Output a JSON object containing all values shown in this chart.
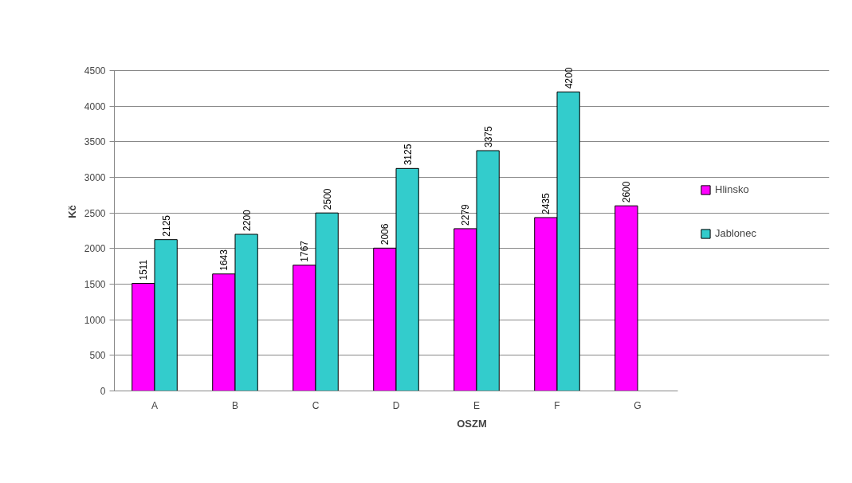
{
  "chart_data": {
    "type": "bar",
    "xlabel": "OSZM",
    "ylabel": "Kč",
    "categories": [
      "A",
      "B",
      "C",
      "D",
      "E",
      "F",
      "G"
    ],
    "series": [
      {
        "name": "Hlinsko",
        "color": "#ff00ff",
        "values": [
          1511,
          1643,
          1767,
          2006,
          2279,
          2435,
          2600
        ]
      },
      {
        "name": "Jablonec",
        "color": "#33cccc",
        "values": [
          2125,
          2200,
          2500,
          3125,
          3375,
          4200,
          null
        ]
      }
    ],
    "ylim": [
      0,
      4500
    ],
    "yticks": [
      0,
      500,
      1000,
      1500,
      2000,
      2500,
      3000,
      3500,
      4000,
      4500
    ],
    "grid": "y",
    "legend": "right",
    "data_labels": true
  }
}
